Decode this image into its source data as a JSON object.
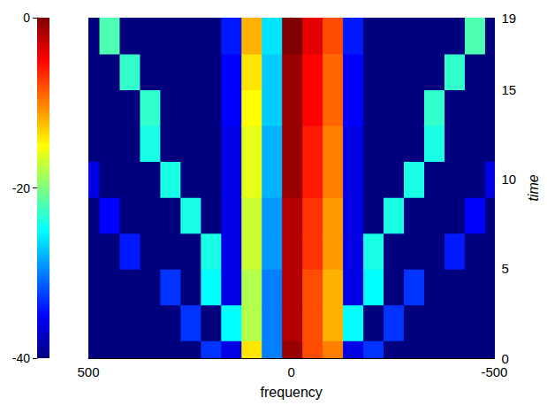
{
  "chart_data": {
    "type": "heatmap",
    "x_label": "frequency",
    "y_label": "time",
    "frequencies": [
      -500,
      -450,
      -400,
      -350,
      -300,
      -250,
      -200,
      -150,
      -100,
      -50,
      0,
      50,
      100,
      150,
      200,
      250,
      300,
      350,
      400,
      450,
      500
    ],
    "times": [
      0,
      2,
      4,
      6,
      8,
      10,
      12,
      14,
      16,
      18
    ],
    "cells": [
      [
        -40,
        -40,
        -40,
        -40,
        -40,
        -40,
        -33,
        -36,
        -10,
        -8,
        -1,
        -30,
        -14,
        -36,
        -33,
        -40,
        -40,
        -40,
        -40,
        -40,
        -40
      ],
      [
        -40,
        -40,
        -40,
        -40,
        -40,
        -33,
        -40,
        -25,
        -12,
        -8,
        -2,
        -30,
        -18,
        -25,
        -40,
        -33,
        -40,
        -40,
        -40,
        -40,
        -40
      ],
      [
        -40,
        -40,
        -40,
        -40,
        -33,
        -40,
        -25,
        -36,
        -12,
        -8,
        -2,
        -30,
        -18,
        -36,
        -25,
        -40,
        -33,
        -40,
        -40,
        -40,
        -40
      ],
      [
        -40,
        -40,
        -34,
        -40,
        -40,
        -40,
        -24,
        -36,
        -11,
        -7,
        -2,
        -29,
        -17,
        -36,
        -24,
        -40,
        -40,
        -40,
        -34,
        -40,
        -40
      ],
      [
        -40,
        -35,
        -40,
        -40,
        -40,
        -24,
        -40,
        -36,
        -11,
        -7,
        -2,
        -29,
        -17,
        -36,
        -40,
        -24,
        -40,
        -40,
        -40,
        -35,
        -40
      ],
      [
        -36,
        -40,
        -40,
        -40,
        -24,
        -40,
        -40,
        -36,
        -10,
        -6,
        -1,
        -28,
        -16,
        -36,
        -40,
        -40,
        -24,
        -40,
        -40,
        -40,
        -36
      ],
      [
        -40,
        -40,
        -40,
        -24,
        -40,
        -40,
        -40,
        -36,
        -10,
        -6,
        -1,
        -28,
        -16,
        -36,
        -40,
        -40,
        -40,
        -24,
        -40,
        -40,
        -40
      ],
      [
        -40,
        -40,
        -40,
        -23,
        -40,
        -40,
        -40,
        -35,
        -9,
        -5,
        -1,
        -27,
        -15,
        -35,
        -40,
        -40,
        -40,
        -23,
        -40,
        -40,
        -40
      ],
      [
        -40,
        -40,
        -23,
        -40,
        -40,
        -40,
        -40,
        -35,
        -9,
        -5,
        -1,
        -27,
        -14,
        -35,
        -40,
        -40,
        -40,
        -40,
        -23,
        -40,
        -40
      ],
      [
        -40,
        -22,
        -40,
        -40,
        -40,
        -40,
        -40,
        -34,
        -8,
        -4,
        0,
        -26,
        -12,
        -34,
        -40,
        -40,
        -40,
        -40,
        -40,
        -22,
        -40
      ]
    ],
    "xlim": [
      500,
      -500
    ],
    "xticks": [
      500,
      0,
      -500
    ],
    "ylim": [
      0,
      19
    ],
    "yticks": [
      0,
      5,
      10,
      15
    ],
    "zlim": [
      -40,
      0
    ],
    "zticks": [
      -40,
      -20,
      0
    ]
  }
}
